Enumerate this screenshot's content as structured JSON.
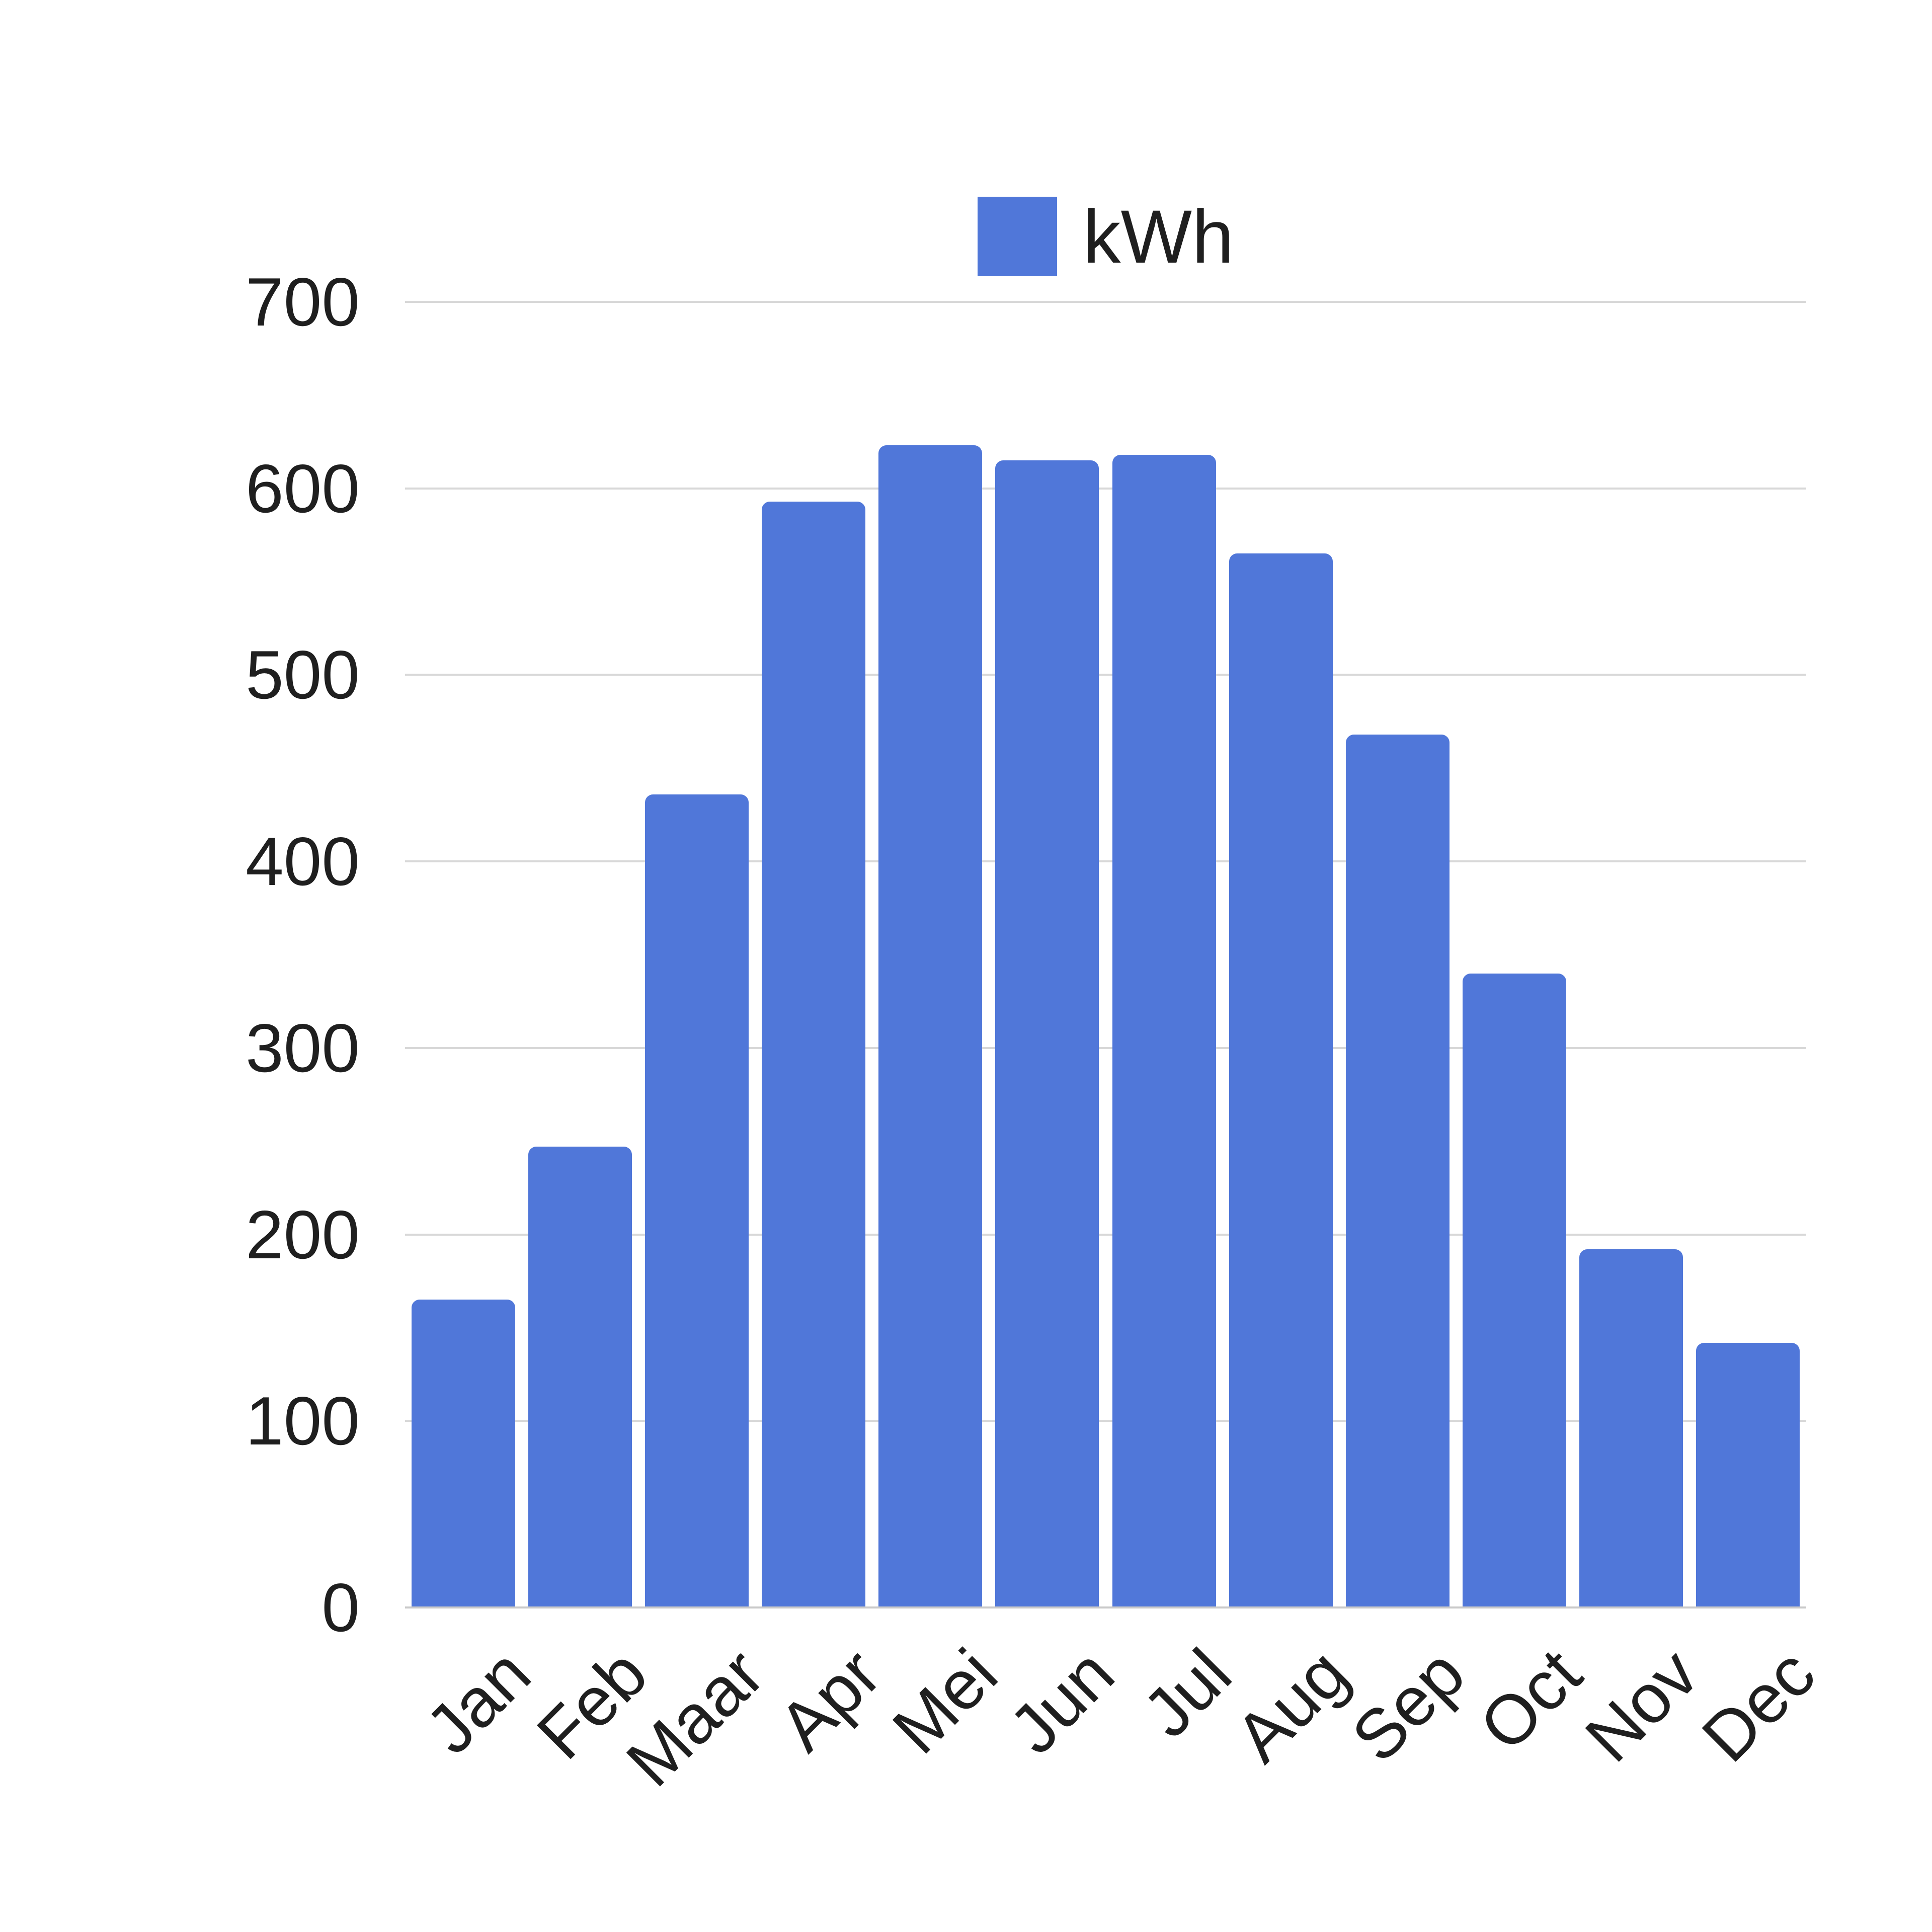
{
  "chart_data": {
    "type": "bar",
    "title": "",
    "legend": {
      "label": "kWh",
      "position": "top"
    },
    "categories": [
      "Jan",
      "Feb",
      "Maar",
      "Apr",
      "Mei",
      "Jun",
      "Jul",
      "Aug",
      "Sep",
      "Oct",
      "Nov",
      "Dec"
    ],
    "values": [
      165,
      247,
      436,
      593,
      623,
      615,
      618,
      565,
      468,
      340,
      192,
      142
    ],
    "xlabel": "",
    "ylabel": "",
    "ylim": [
      0,
      700
    ],
    "yticks": [
      0,
      100,
      200,
      300,
      400,
      500,
      600,
      700
    ],
    "grid": true,
    "bar_color": "#5077d9",
    "text_color": "#1f1f1f",
    "gridline_color": "#d8d8d8"
  }
}
